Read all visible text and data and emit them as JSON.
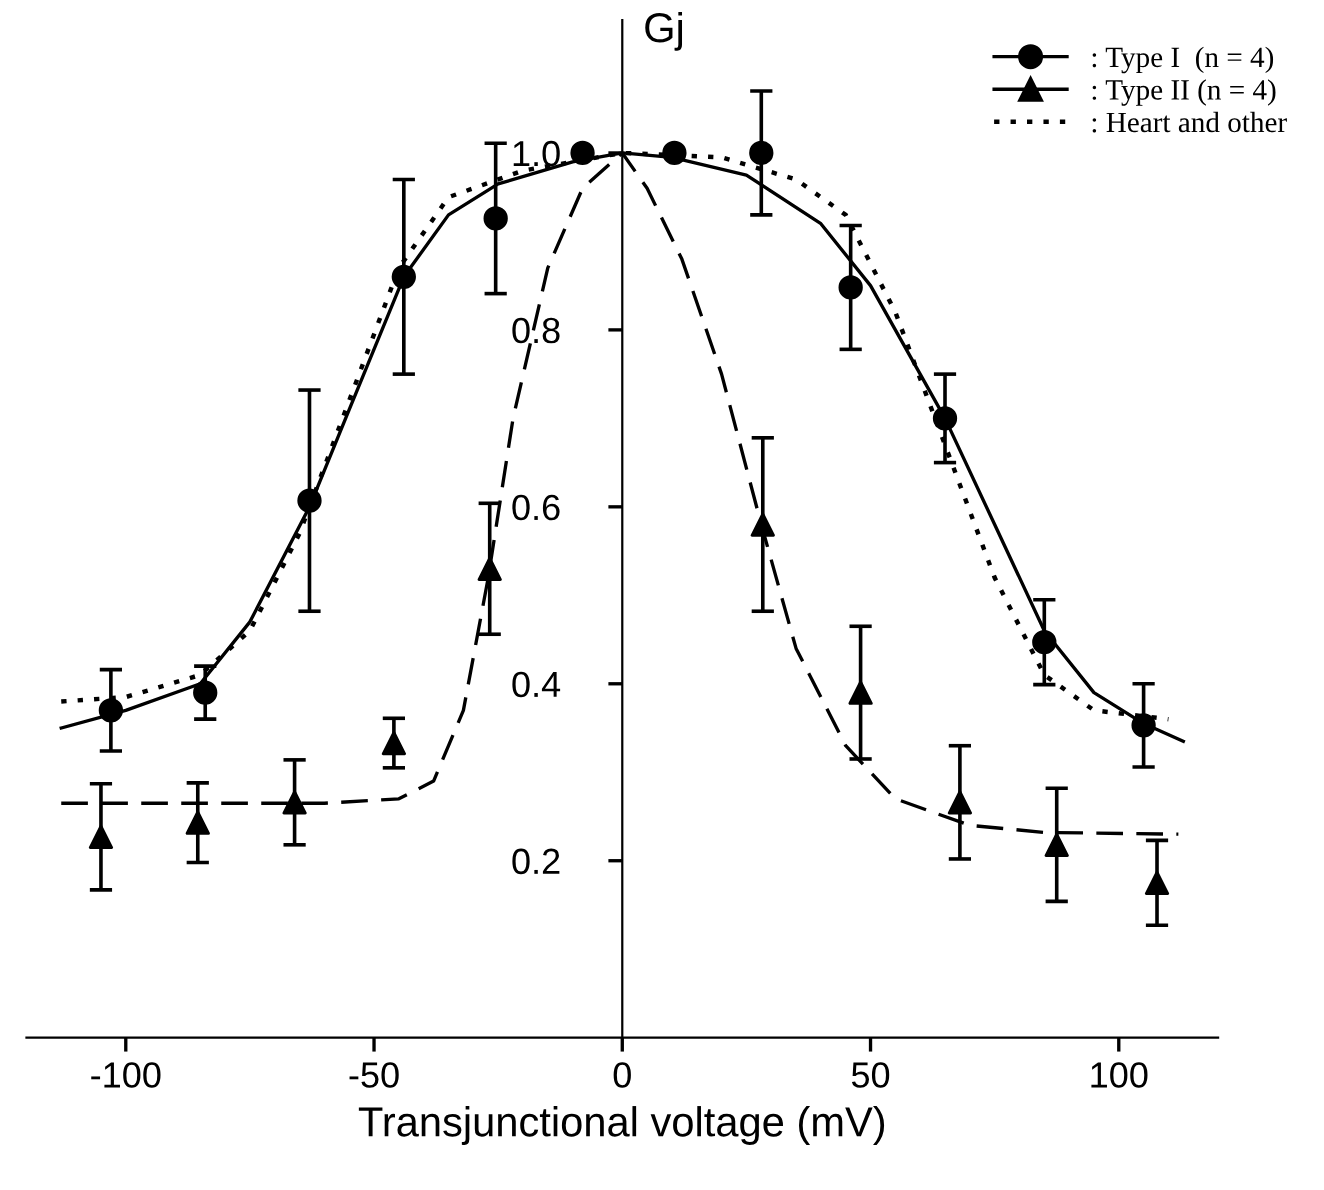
{
  "chart_data": {
    "type": "scatter",
    "xlabel": "Transjunctional voltage (mV)",
    "ylabel": "Gj",
    "xlim": [
      -120,
      120
    ],
    "xticks": [
      -100,
      -50,
      0,
      50,
      100
    ],
    "ylim": [
      0,
      1.15
    ],
    "yticks": [
      0.2,
      0.4,
      0.6,
      0.8,
      {
        "value": 1.0,
        "label": "1.0"
      }
    ],
    "grid": false,
    "legend": "top right",
    "series": [
      {
        "name": ": Type I  (n = 4)",
        "marker": "circle",
        "color": "#000000",
        "x": [
          -103,
          -84,
          -63,
          -44,
          -25.5,
          -8,
          10.5,
          28,
          46,
          65,
          85,
          105
        ],
        "values": [
          0.37,
          0.39,
          0.607,
          0.86,
          0.926,
          1.0,
          1.0,
          1.0,
          0.848,
          0.7,
          0.447,
          0.353
        ],
        "errors": [
          0.046,
          0.03,
          0.125,
          0.11,
          0.085,
          null,
          null,
          0.07,
          0.07,
          0.05,
          0.048,
          0.047
        ]
      },
      {
        "name": ": Type II (n = 4)",
        "marker": "triangle",
        "color": "#000000",
        "x": [
          -105,
          -85.5,
          -66,
          -46,
          -26.7,
          28.3,
          48,
          68,
          87.5,
          107.7
        ],
        "values": [
          0.227,
          0.243,
          0.266,
          0.333,
          0.53,
          0.58,
          0.39,
          0.266,
          0.218,
          0.175
        ],
        "errors": [
          0.06,
          0.045,
          0.048,
          0.028,
          0.074,
          0.098,
          0.075,
          0.064,
          0.064,
          0.048
        ]
      },
      {
        "name": ": Heart and other",
        "type": "line",
        "line_style": "dotted",
        "color": "#000000",
        "x": [
          -113,
          -100,
          -85,
          -75,
          -65,
          -55,
          -45,
          -35,
          -20,
          0,
          20,
          35,
          45,
          55,
          65,
          75,
          85,
          95,
          110
        ],
        "values": [
          0.38,
          0.385,
          0.41,
          0.46,
          0.57,
          0.72,
          0.87,
          0.95,
          0.98,
          1.0,
          0.995,
          0.97,
          0.93,
          0.82,
          0.67,
          0.52,
          0.41,
          0.37,
          0.36
        ]
      },
      {
        "type": "line",
        "line_style": "solid",
        "color": "#000000",
        "x": [
          -113,
          -100,
          -85,
          -75,
          -63,
          -55,
          -44,
          -35,
          -25,
          -10,
          0,
          10,
          25,
          40,
          50,
          60,
          65,
          75,
          85,
          95,
          105,
          113
        ],
        "values": [
          0.35,
          0.37,
          0.4,
          0.47,
          0.6,
          0.71,
          0.86,
          0.93,
          0.965,
          0.99,
          1.0,
          0.995,
          0.975,
          0.92,
          0.85,
          0.75,
          0.7,
          0.58,
          0.46,
          0.39,
          0.355,
          0.335
        ]
      },
      {
        "type": "line",
        "line_style": "dashed",
        "color": "#000000",
        "x": [
          -113,
          -60,
          -45,
          -38,
          -32,
          -27,
          -22,
          -15,
          -8,
          0,
          5,
          12,
          20,
          28,
          35,
          45,
          55,
          70,
          85,
          112
        ],
        "values": [
          0.265,
          0.265,
          0.27,
          0.29,
          0.37,
          0.52,
          0.7,
          0.87,
          0.96,
          1.0,
          0.96,
          0.88,
          0.75,
          0.58,
          0.44,
          0.33,
          0.27,
          0.24,
          0.232,
          0.23
        ]
      }
    ]
  }
}
